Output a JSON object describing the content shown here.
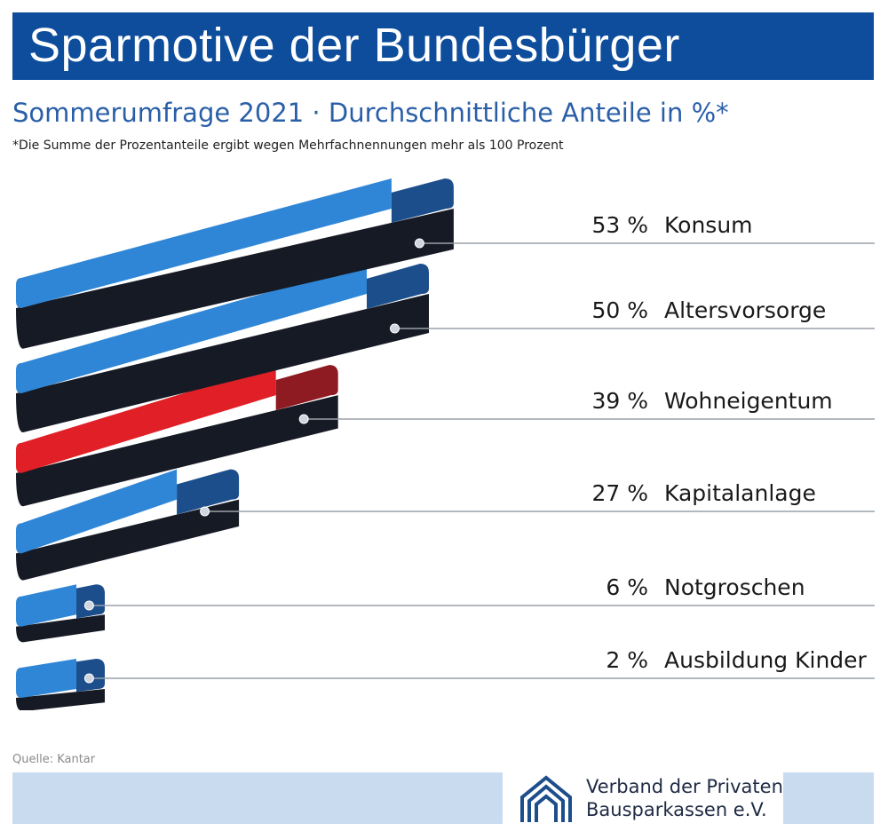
{
  "header": {
    "title": "Sparmotive der Bundesbürger",
    "subtitle": "Sommerumfrage 2021 · Durchschnittliche Anteile in %*",
    "footnote": "*Die Summe der Prozentanteile ergibt wegen Mehrfachnennungen mehr als 100 Prozent"
  },
  "footer": {
    "source": "Quelle: Kantar",
    "org_line1": "Verband der Privaten",
    "org_line2": "Bausparkassen e.V.",
    "logo_icon": "houses-logo-icon"
  },
  "colors": {
    "brand_blue": "#0d4d9c",
    "bar_blue": "#2f86d6",
    "bar_blue_end": "#1d4e8c",
    "bar_red": "#e01f26",
    "bar_red_end": "#8e1a22",
    "bar_bottom": "#161a24",
    "footer_band": "#c9dcef"
  },
  "chart_data": {
    "type": "bar",
    "orientation": "horizontal",
    "categories": [
      "Konsum",
      "Altersvorsorge",
      "Wohneigentum",
      "Kapitalanlage",
      "Notgroschen",
      "Ausbildung Kinder"
    ],
    "values": [
      53,
      50,
      39,
      27,
      6,
      2
    ],
    "value_labels": [
      "53 %",
      "50 %",
      "39 %",
      "27 %",
      "6 %",
      "2 %"
    ],
    "highlight": "Wohneigentum",
    "unit": "%"
  }
}
